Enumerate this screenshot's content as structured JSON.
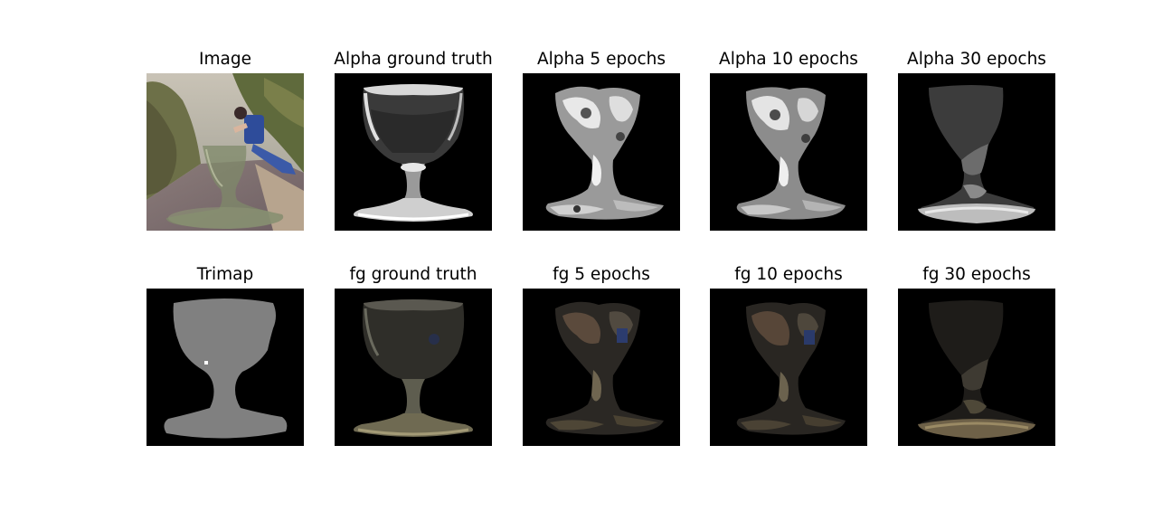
{
  "panels": {
    "image": {
      "title": "Image"
    },
    "alpha_gt": {
      "title": "Alpha ground truth"
    },
    "alpha_5": {
      "title": "Alpha 5 epochs"
    },
    "alpha_10": {
      "title": "Alpha 10 epochs"
    },
    "alpha_30": {
      "title": "Alpha 30 epochs"
    },
    "trimap": {
      "title": "Trimap"
    },
    "fg_gt": {
      "title": "fg ground truth"
    },
    "fg_5": {
      "title": "fg 5 epochs"
    },
    "fg_10": {
      "title": "fg 10 epochs"
    },
    "fg_30": {
      "title": "fg 30 epochs"
    }
  },
  "colors": {
    "background": "#000000",
    "trimap_unknown": "#808080",
    "alpha_white": "#ffffff",
    "fg_glass": "#6b6a58"
  }
}
